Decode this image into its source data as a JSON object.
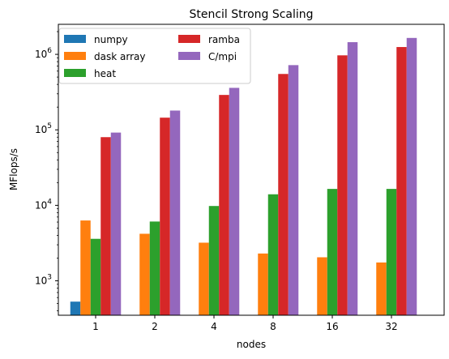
{
  "chart_data": {
    "type": "bar",
    "title": "Stencil Strong Scaling",
    "xlabel": "nodes",
    "ylabel": "MFlops/s",
    "yscale": "log",
    "ylim": [
      350,
      2500000
    ],
    "categories": [
      "1",
      "2",
      "4",
      "8",
      "16",
      "32"
    ],
    "y_ticks": [
      {
        "value": 1000,
        "base": "10",
        "exp": "3"
      },
      {
        "value": 10000,
        "base": "10",
        "exp": "4"
      },
      {
        "value": 100000,
        "base": "10",
        "exp": "5"
      },
      {
        "value": 1000000,
        "base": "10",
        "exp": "6"
      }
    ],
    "legend_location": "upper left",
    "legend_columns": 2,
    "grid": false,
    "series": [
      {
        "name": "numpy",
        "color": "#1f77b4",
        "values": [
          530,
          null,
          null,
          null,
          null,
          null
        ]
      },
      {
        "name": "dask array",
        "color": "#ff7f0e",
        "values": [
          6300,
          4200,
          3200,
          2300,
          2050,
          1750
        ]
      },
      {
        "name": "heat",
        "color": "#2ca02c",
        "values": [
          3600,
          6100,
          9800,
          14000,
          16500,
          16500
        ]
      },
      {
        "name": "ramba",
        "color": "#d62728",
        "values": [
          80000,
          145000,
          290000,
          550000,
          970000,
          1250000
        ]
      },
      {
        "name": "C/mpi",
        "color": "#9467bd",
        "values": [
          92000,
          180000,
          360000,
          720000,
          1450000,
          1650000
        ]
      }
    ]
  }
}
